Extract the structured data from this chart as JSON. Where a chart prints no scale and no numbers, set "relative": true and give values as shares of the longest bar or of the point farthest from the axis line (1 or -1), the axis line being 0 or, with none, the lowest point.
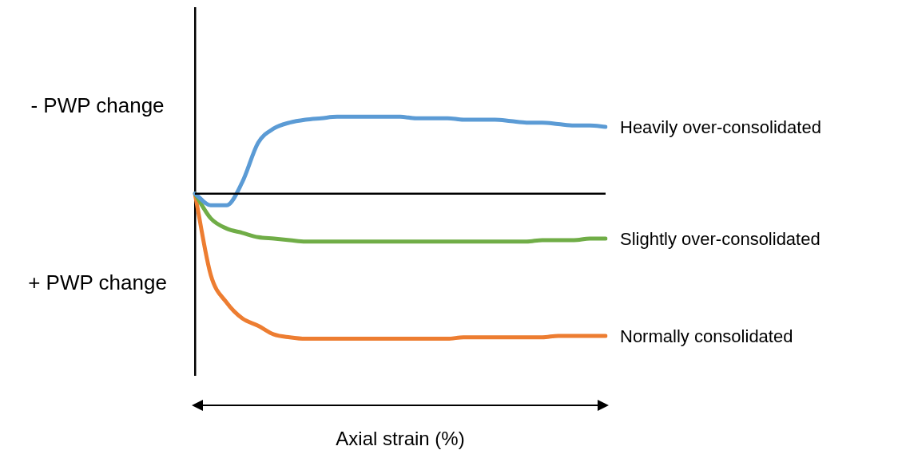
{
  "chart_data": {
    "type": "line",
    "relative": true,
    "xlabel": "Axial strain (%)",
    "annotations": [
      "- PWP change",
      "+ PWP change"
    ],
    "categories": [
      null,
      null,
      null,
      null,
      null,
      null,
      null,
      null,
      null,
      null,
      null,
      null,
      null,
      null,
      null,
      null,
      null,
      null,
      null,
      null,
      null,
      null,
      null,
      null,
      null,
      null,
      null
    ],
    "series": [
      {
        "name": "Heavily over-consolidated",
        "color": "#5b9bd5",
        "values": [
          0,
          -0.08,
          -0.08,
          0.08,
          0.35,
          0.45,
          0.49,
          0.51,
          0.52,
          0.53,
          0.53,
          0.53,
          0.53,
          0.53,
          0.52,
          0.52,
          0.52,
          0.51,
          0.51,
          0.51,
          0.5,
          0.49,
          0.49,
          0.48,
          0.47,
          0.47,
          0.46
        ]
      },
      {
        "name": "Slightly over-consolidated",
        "color": "#70ad47",
        "values": [
          0,
          -0.17,
          -0.24,
          -0.27,
          -0.3,
          -0.31,
          -0.32,
          -0.33,
          -0.33,
          -0.33,
          -0.33,
          -0.33,
          -0.33,
          -0.33,
          -0.33,
          -0.33,
          -0.33,
          -0.33,
          -0.33,
          -0.33,
          -0.33,
          -0.33,
          -0.32,
          -0.32,
          -0.32,
          -0.31,
          -0.31
        ]
      },
      {
        "name": "Normally consolidated",
        "color": "#ed7d31",
        "values": [
          0,
          -0.56,
          -0.75,
          -0.86,
          -0.91,
          -0.97,
          -0.99,
          -1,
          -1,
          -1,
          -1,
          -1,
          -1,
          -1,
          -1,
          -1,
          -1,
          -0.99,
          -0.99,
          -0.99,
          -0.99,
          -0.99,
          -0.99,
          -0.98,
          -0.98,
          -0.98,
          -0.98
        ]
      }
    ]
  }
}
